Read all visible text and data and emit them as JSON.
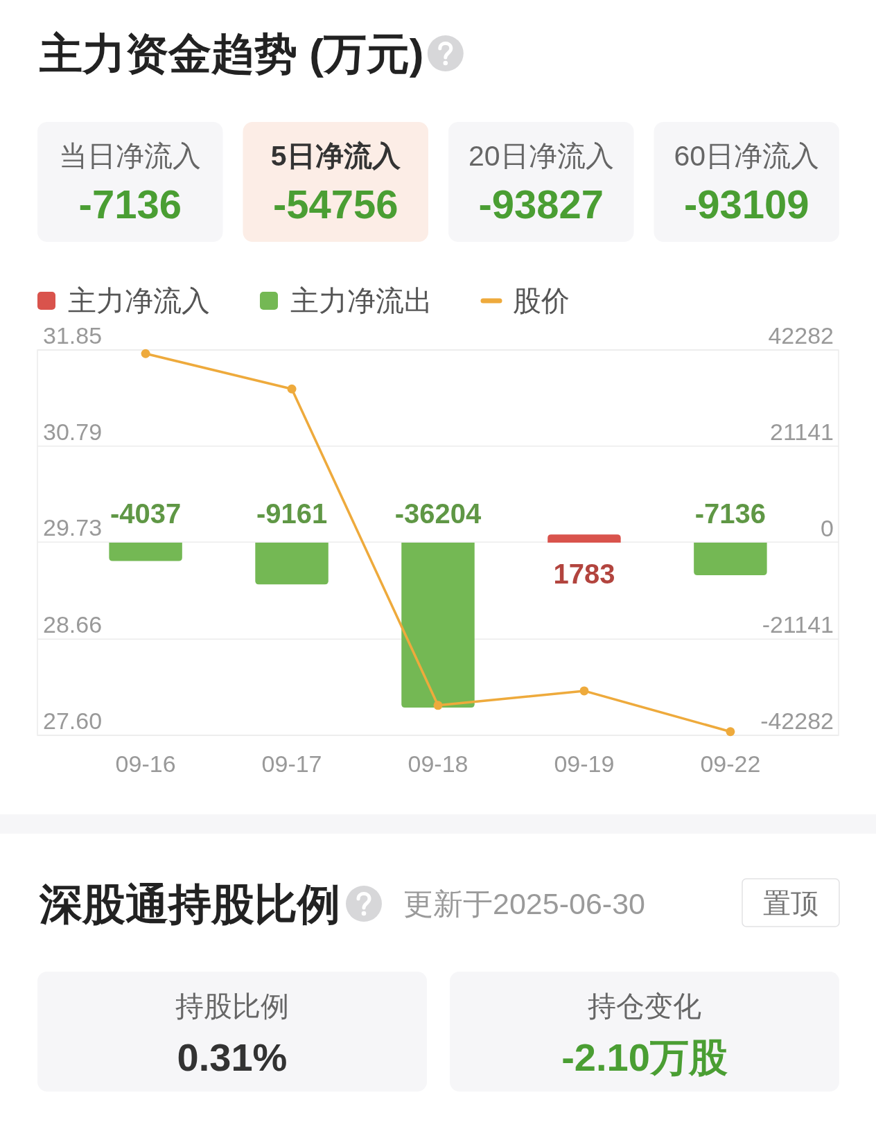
{
  "chart_data": [
    {
      "type": "other",
      "title": "主力资金趋势 (万元)",
      "categories": [
        "当日净流入",
        "5日净流入",
        "20日净流入",
        "60日净流入"
      ],
      "values": [
        -7136,
        -54756,
        -93827,
        -93109
      ],
      "data_labels": true,
      "colors": [
        "#f6f6f8",
        "#fcede6",
        "#f6f6f8",
        "#f6f6f8"
      ]
    },
    {
      "type": "bar",
      "categories": [
        "09-16",
        "09-17",
        "09-18",
        "09-19",
        "09-22"
      ],
      "series": [
        {
          "name": "主力净流入",
          "color": "#d9534c",
          "axis": "y2",
          "values": [
            null,
            null,
            null,
            1783,
            null
          ],
          "value_labels": [
            null,
            null,
            null,
            "1783",
            null
          ]
        },
        {
          "name": "主力净流出",
          "color": "#74b854",
          "axis": "y2",
          "values": [
            -4037,
            -9161,
            -36204,
            null,
            -7136
          ],
          "value_labels": [
            "-4037",
            "-9161",
            "-36204",
            null,
            "-7136"
          ]
        },
        {
          "name": "股价",
          "type": "line",
          "color": "#eeaa3c",
          "values": [
            31.81,
            31.42,
            27.93,
            28.09,
            27.64
          ]
        }
      ],
      "stacked": true,
      "ylim": [
        27.6,
        31.85
      ],
      "yticks": [
        {
          "value": 27.6,
          "label": "27.60"
        },
        28.66,
        29.73,
        30.79,
        31.85
      ],
      "y2lim": [
        -42282,
        42282
      ],
      "y2ticks": [
        -42282,
        -21141,
        0,
        21141,
        42282
      ],
      "grid": "y",
      "legend": "top left",
      "marker": "circle"
    },
    {
      "type": "other",
      "title": "深股通持股比例",
      "subtitle": "更新于2025-06-30",
      "annotations": [
        "置顶"
      ],
      "categories": [
        "持股比例",
        "持仓变化"
      ],
      "values": [
        0.31,
        -2.1
      ],
      "value_labels": [
        "0.31%",
        "-2.10万股"
      ],
      "colors": [
        "#f6f6f8",
        "#f6f6f8"
      ]
    }
  ]
}
